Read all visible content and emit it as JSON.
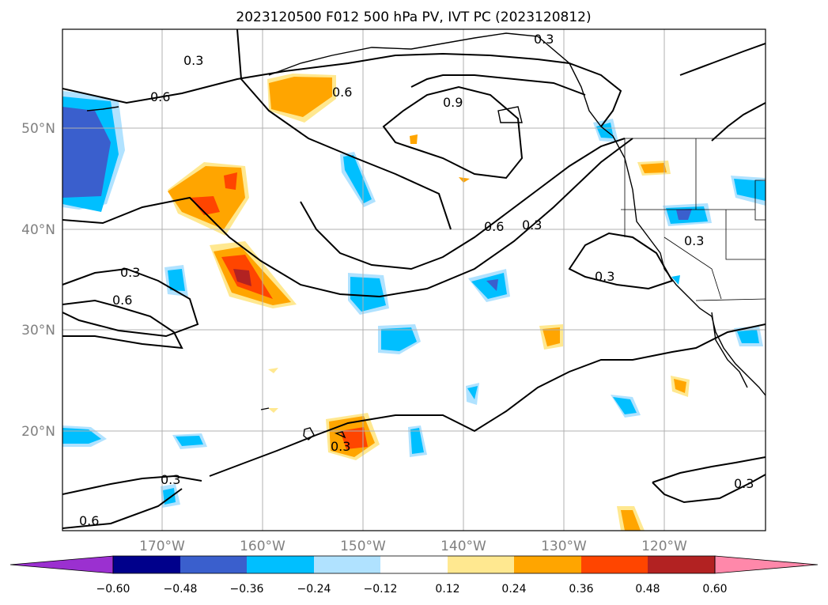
{
  "title": "2023120500 F012 500 hPa PV, IVT PC (2023120812)",
  "axes": {
    "lat_labels": [
      "50°N",
      "40°N",
      "30°N",
      "20°N"
    ],
    "lon_labels": [
      "170°W",
      "160°W",
      "150°W",
      "140°W",
      "130°W",
      "120°W"
    ]
  },
  "contour_labels": {
    "top_03": "0.3",
    "top_right_03": "0.3",
    "nw_06": "0.6",
    "north_06": "0.6",
    "ridge_09": "0.9",
    "jet_06": "0.6",
    "jet_03": "0.3",
    "west_03": "0.3",
    "west_06": "0.6",
    "east_03": "0.3",
    "coast_03": "0.3",
    "hawaii_03": "0.3",
    "sw_03": "0.3",
    "sw_06": "0.6",
    "se_03": "0.3"
  },
  "colorbar": {
    "ticks": [
      "−0.60",
      "−0.48",
      "−0.36",
      "−0.24",
      "−0.12",
      "0.12",
      "0.24",
      "0.36",
      "0.48",
      "0.60"
    ],
    "colors": [
      "#9b30d0",
      "#00008b",
      "#3a5fcd",
      "#00bfff",
      "#b0e2ff",
      "#ffffff",
      "#ffe890",
      "#ffa500",
      "#ff4500",
      "#b22222",
      "#ff88aa"
    ]
  }
}
